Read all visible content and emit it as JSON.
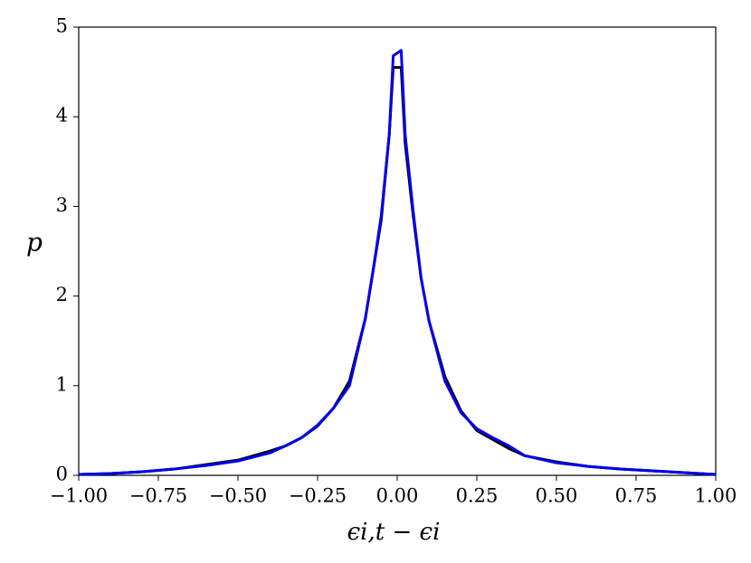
{
  "chart_data": {
    "type": "line",
    "xlabel": "ϵi,t − ϵi",
    "ylabel": "p",
    "x": [
      -1,
      -0.9,
      -0.8,
      -0.7,
      -0.6,
      -0.5,
      -0.4,
      -0.35,
      -0.3,
      -0.25,
      -0.2,
      -0.15,
      -0.1,
      -0.075,
      -0.05,
      -0.025,
      -0.0125,
      0.0125,
      0.025,
      0.05,
      0.075,
      0.1,
      0.15,
      0.2,
      0.25,
      0.3,
      0.35,
      0.4,
      0.5,
      0.6,
      0.7,
      0.8,
      0.9,
      1
    ],
    "series": [
      {
        "color": "#000000",
        "values": [
          0.01,
          0.02,
          0.04,
          0.07,
          0.12,
          0.17,
          0.27,
          0.33,
          0.42,
          0.55,
          0.75,
          1.05,
          1.75,
          2.3,
          2.85,
          3.8,
          4.55,
          4.55,
          3.7,
          2.9,
          2.2,
          1.72,
          1.1,
          0.72,
          0.5,
          0.4,
          0.3,
          0.22,
          0.15,
          0.1,
          0.07,
          0.05,
          0.03,
          0.01
        ]
      },
      {
        "color": "#0000ee",
        "values": [
          0.01,
          0.02,
          0.04,
          0.07,
          0.11,
          0.16,
          0.25,
          0.33,
          0.42,
          0.56,
          0.75,
          1.0,
          1.75,
          2.3,
          2.9,
          3.8,
          4.68,
          4.74,
          3.8,
          2.95,
          2.2,
          1.72,
          1.05,
          0.7,
          0.52,
          0.42,
          0.33,
          0.22,
          0.14,
          0.1,
          0.07,
          0.05,
          0.03,
          0.01
        ]
      }
    ],
    "xlim": [
      -1,
      1
    ],
    "xticks": [
      {
        "value": -1,
        "label": "−1.00"
      },
      {
        "value": -0.75,
        "label": "−0.75"
      },
      {
        "value": -0.5,
        "label": "−0.50"
      },
      {
        "value": -0.25,
        "label": "−0.25"
      },
      {
        "value": 0,
        "label": "0.00"
      },
      {
        "value": 0.25,
        "label": "0.25"
      },
      {
        "value": 0.5,
        "label": "0.50"
      },
      {
        "value": 0.75,
        "label": "0.75"
      },
      {
        "value": 1,
        "label": "1.00"
      }
    ],
    "ylim": [
      0,
      5
    ],
    "yticks": [
      0,
      1,
      2,
      3,
      4,
      5
    ]
  }
}
